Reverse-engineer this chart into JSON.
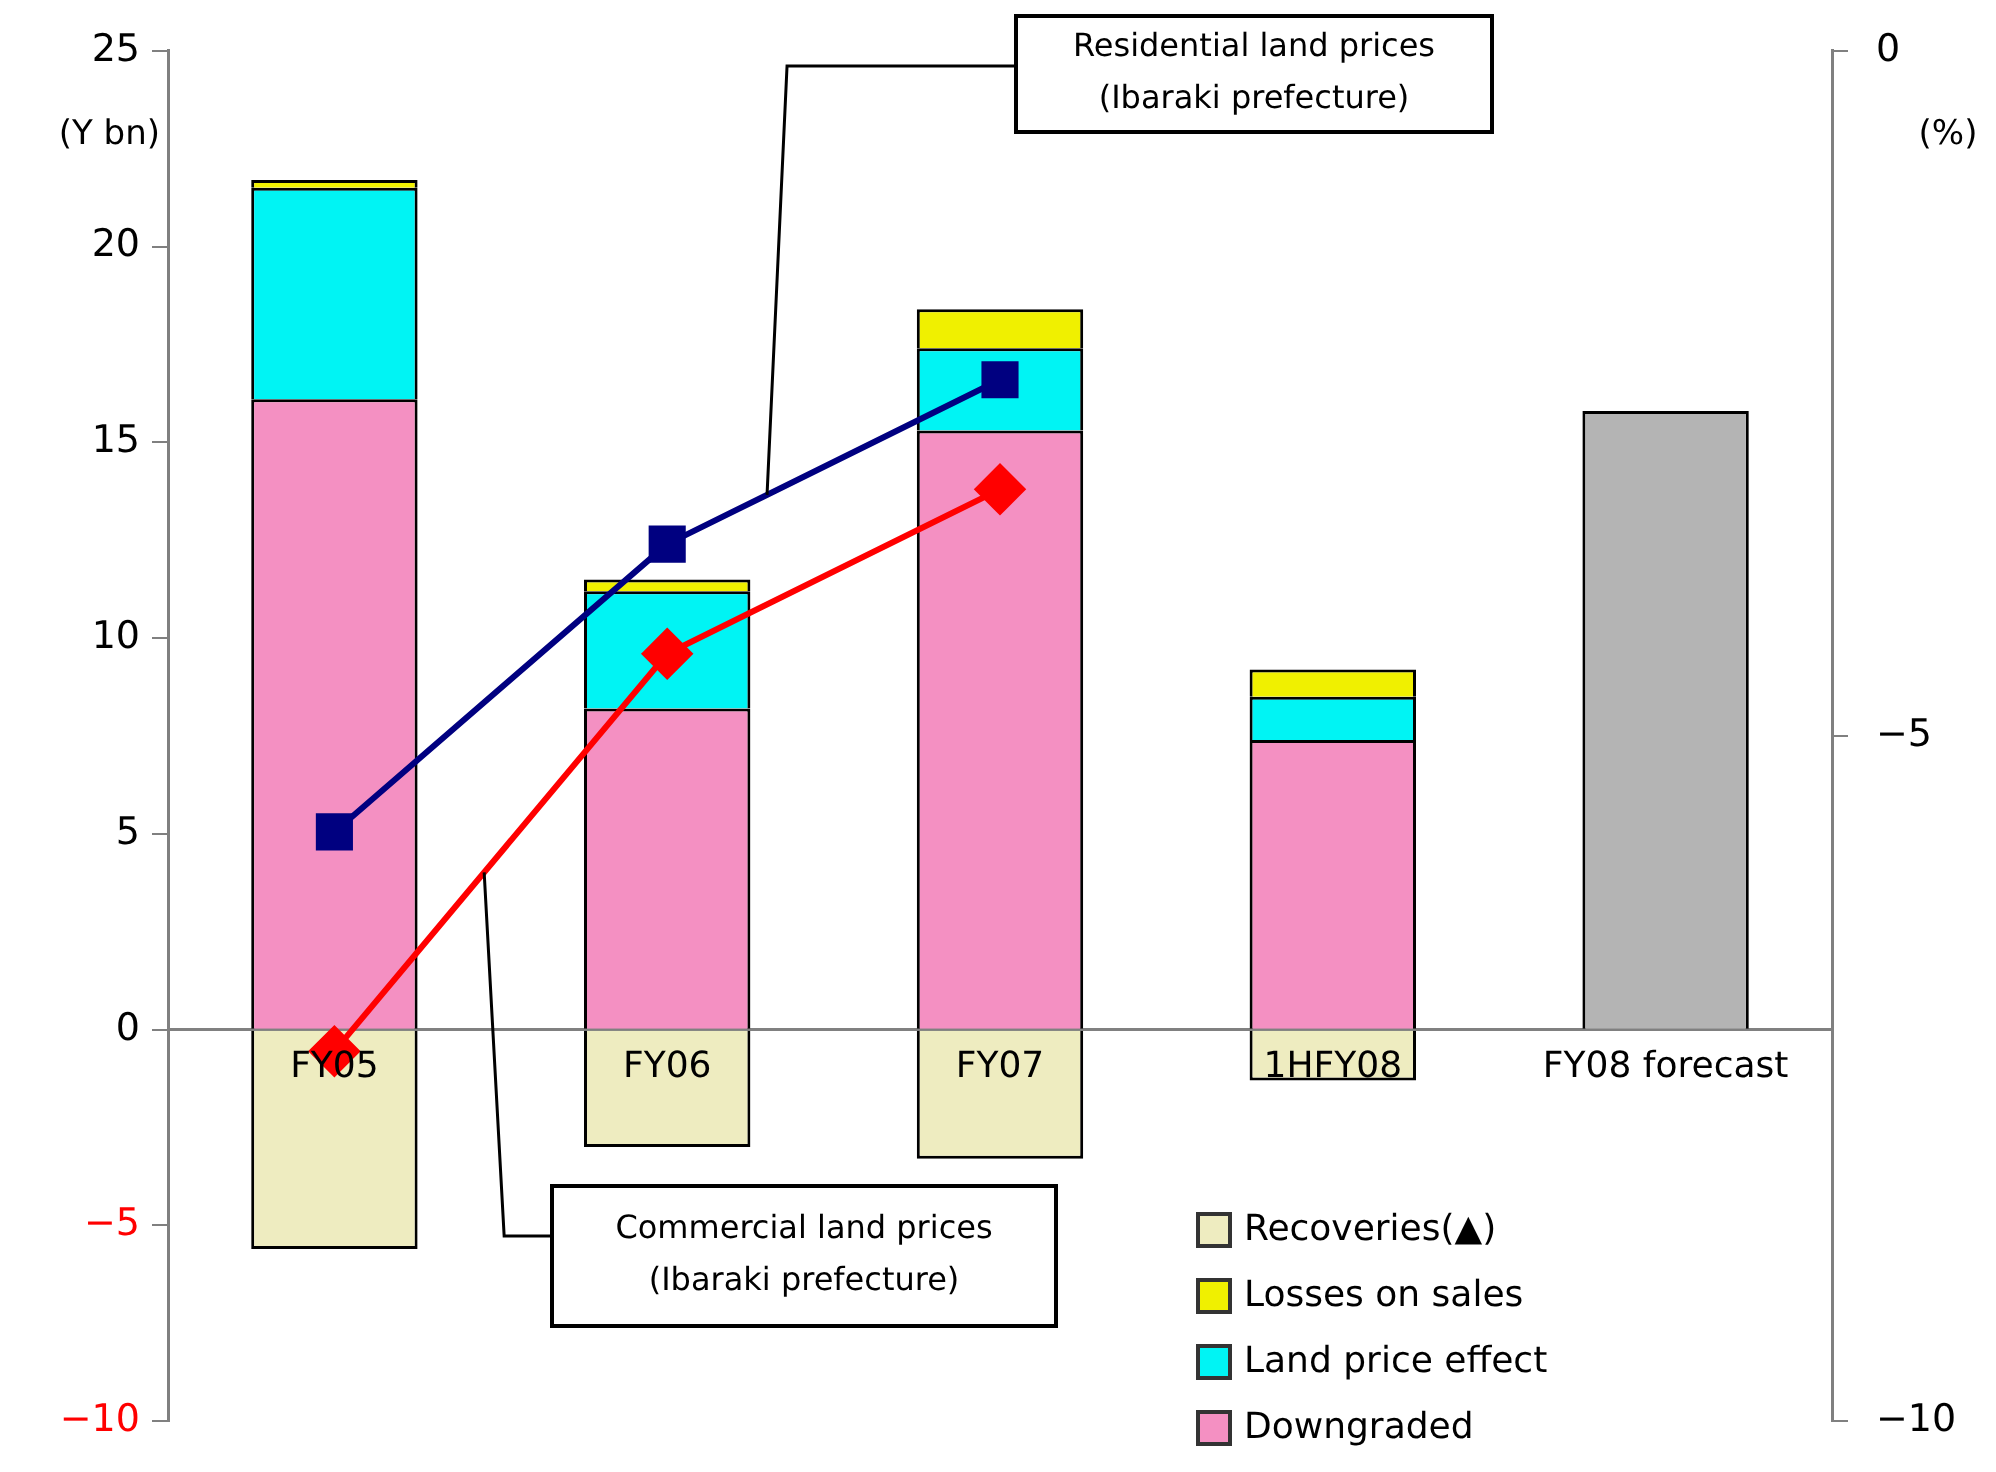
{
  "chart_data": {
    "type": "bar",
    "stacked": true,
    "ylabel": "(Y bn)",
    "y2label": "(%)",
    "categories": [
      "FY05",
      "FY06",
      "FY07",
      "1HFY08",
      "FY08 forecast"
    ],
    "series": [
      {
        "name": "Downgraded",
        "color": "#f490c2",
        "values": [
          16.1,
          8.2,
          15.3,
          7.4,
          null
        ]
      },
      {
        "name": "Land price effect",
        "color": "#00f4f4",
        "values": [
          5.4,
          3.0,
          2.1,
          1.1,
          null
        ]
      },
      {
        "name": "Losses on sales",
        "color": "#f0f000",
        "values": [
          0.2,
          0.3,
          1.0,
          0.7,
          null
        ]
      },
      {
        "name": "Recoveries(▲)",
        "color": "#eeecc0",
        "values": [
          -5.6,
          -3.0,
          -3.3,
          -1.3,
          null
        ]
      },
      {
        "color": "#b4b4b4",
        "values": [
          null,
          null,
          null,
          null,
          15.8
        ]
      },
      {
        "type": "line",
        "axis": "y2",
        "color": "#000080",
        "marker": "square",
        "values": [
          -5.7,
          -3.6,
          -2.4,
          null,
          null
        ]
      },
      {
        "type": "line",
        "axis": "y2",
        "color": "#ff0000",
        "marker": "diamond",
        "values": [
          -7.3,
          -4.4,
          -3.2,
          null,
          null
        ]
      }
    ],
    "ylim": [
      -10,
      25
    ],
    "yticks": [
      {
        "value": -10,
        "label": "−10"
      },
      {
        "value": -5,
        "label": "−5"
      },
      0,
      5,
      10,
      15,
      20,
      25
    ],
    "y2lim": [
      -10,
      0
    ],
    "y2ticks": [
      {
        "value": -10,
        "label": "−10"
      },
      {
        "value": -5,
        "label": "−5"
      },
      0
    ],
    "annotations": [
      "Residential land prices\n(Ibaraki prefecture)",
      "Commercial land prices\n(Ibaraki prefecture)"
    ],
    "legend": "bottom right",
    "grid": false
  }
}
